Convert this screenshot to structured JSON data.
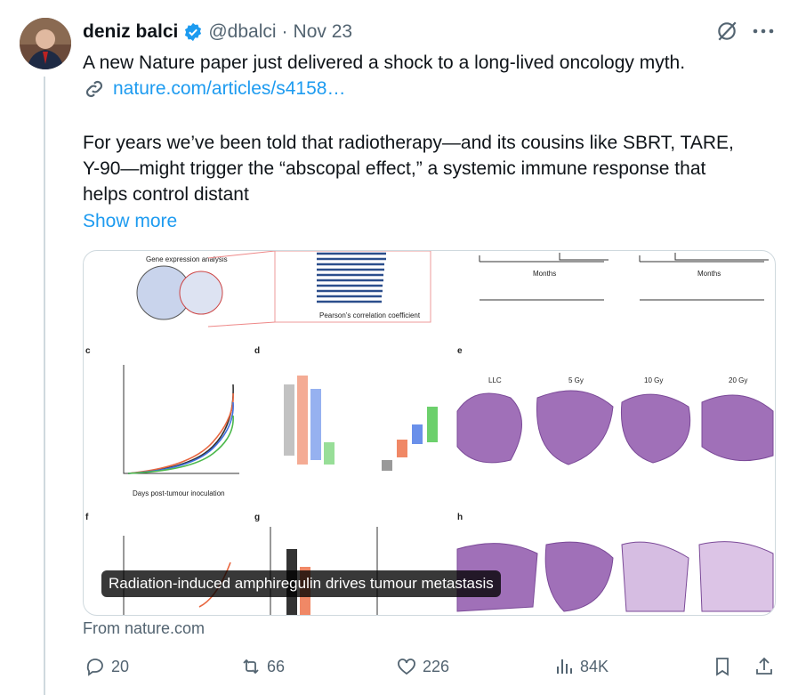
{
  "author": {
    "name": "deniz balci",
    "handle": "@dbalci",
    "separator": "·",
    "date": "Nov 23"
  },
  "tweet": {
    "intro": "A new Nature paper just delivered a shock to a long-lived oncology myth.",
    "link": "nature.com/articles/s4158…",
    "paragraph": "For years we’ve been told that radiotherapy—and its cousins like SBRT, TARE, Y-90—might trigger the “abscopal effect,” a systemic immune response that helps control distant",
    "show_more": "Show more"
  },
  "media": {
    "caption": "Radiation-induced amphiregulin drives tumour metastasis",
    "panel_letters": [
      "c",
      "d",
      "e",
      "f",
      "g",
      "h"
    ],
    "labels": [
      "Gene expression analysis",
      "Pearson’s correlation coefficient",
      "Days post-tumour inoculation",
      "Months",
      "Months"
    ],
    "tissue_labels": [
      "LLC",
      "5 Gy",
      "10 Gy",
      "20 Gy"
    ]
  },
  "source": "From nature.com",
  "actions": {
    "replies": 20,
    "reposts": 66,
    "likes": 226,
    "views": "84K"
  }
}
